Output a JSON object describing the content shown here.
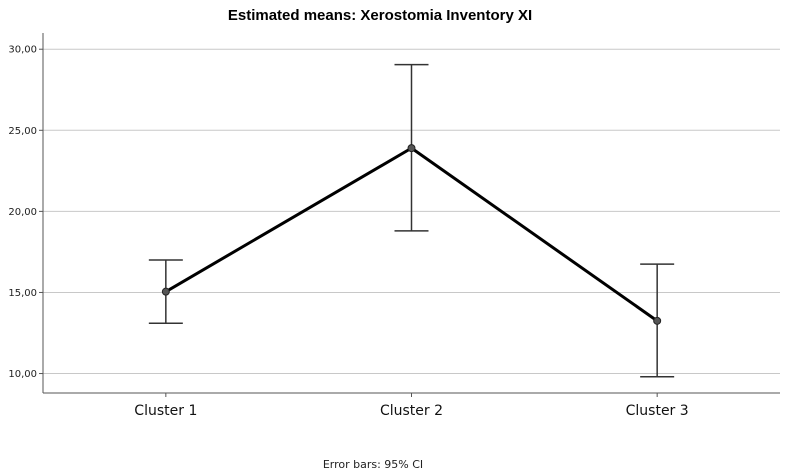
{
  "chart_data": {
    "type": "line",
    "title": "Estimated means: Xerostomia Inventory XI",
    "categories": [
      "Cluster 1",
      "Cluster 2",
      "Cluster 3"
    ],
    "series": [
      {
        "values": [
          15.05,
          23.9,
          13.25
        ],
        "ci_lower": [
          13.1,
          18.8,
          9.8
        ],
        "ci_upper": [
          17.0,
          29.05,
          16.75
        ]
      }
    ],
    "y_ticks": [
      "10,00",
      "15,00",
      "20,00",
      "25,00",
      "30,00"
    ],
    "y_tick_values": [
      10,
      15,
      20,
      25,
      30
    ],
    "ylim": [
      8.8,
      31
    ],
    "grid": true,
    "footnote": "Error bars: 95% CI",
    "colors": {
      "line": "#000000",
      "grid": "#c8c8c8",
      "axis": "#555555"
    }
  }
}
